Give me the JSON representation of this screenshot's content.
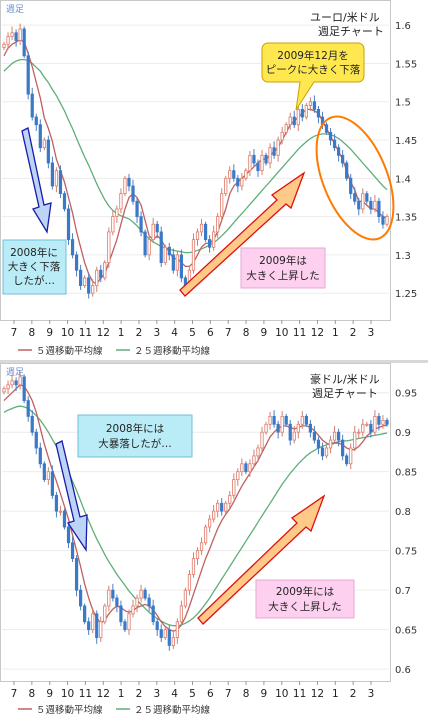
{
  "chart_data": [
    {
      "type": "candlestick",
      "corner_label": "週足",
      "title_lines": [
        "ユーロ/米ドル",
        "週足チャート"
      ],
      "y_ticks": [
        "1.6",
        "1.55",
        "1.5",
        "1.45",
        "1.4",
        "1.35",
        "1.3",
        "1.25"
      ],
      "ylim": [
        1.215,
        1.625
      ],
      "x_ticks": [
        "7",
        "8",
        "9",
        "10",
        "11",
        "12",
        "1",
        "2",
        "3",
        "4",
        "5",
        "6",
        "7",
        "8",
        "9",
        "10",
        "11",
        "12",
        "1",
        "2",
        "3"
      ],
      "legend": [
        {
          "label": "５週移動平均線",
          "color": "#c06060"
        },
        {
          "label": "２５週移動平均線",
          "color": "#5fae7a"
        }
      ],
      "closes": [
        1.575,
        1.585,
        1.59,
        1.58,
        1.595,
        1.56,
        1.51,
        1.48,
        1.47,
        1.44,
        1.45,
        1.42,
        1.39,
        1.41,
        1.38,
        1.36,
        1.32,
        1.3,
        1.28,
        1.26,
        1.27,
        1.25,
        1.26,
        1.28,
        1.27,
        1.29,
        1.33,
        1.35,
        1.36,
        1.38,
        1.4,
        1.39,
        1.37,
        1.35,
        1.33,
        1.3,
        1.32,
        1.34,
        1.33,
        1.29,
        1.31,
        1.3,
        1.28,
        1.3,
        1.27,
        1.26,
        1.28,
        1.32,
        1.33,
        1.34,
        1.32,
        1.31,
        1.33,
        1.35,
        1.38,
        1.4,
        1.41,
        1.4,
        1.39,
        1.4,
        1.41,
        1.43,
        1.42,
        1.41,
        1.43,
        1.42,
        1.44,
        1.43,
        1.45,
        1.46,
        1.47,
        1.48,
        1.47,
        1.49,
        1.48,
        1.495,
        1.5,
        1.49,
        1.48,
        1.47,
        1.46,
        1.45,
        1.44,
        1.43,
        1.42,
        1.4,
        1.38,
        1.37,
        1.36,
        1.38,
        1.37,
        1.36,
        1.37,
        1.35,
        1.34,
        1.35
      ],
      "ma5": [
        1.56,
        1.57,
        1.575,
        1.578,
        1.581,
        1.578,
        1.563,
        1.546,
        1.525,
        1.505,
        1.479,
        1.465,
        1.448,
        1.425,
        1.41,
        1.395,
        1.375,
        1.355,
        1.33,
        1.31,
        1.29,
        1.275,
        1.265,
        1.262,
        1.27,
        1.275,
        1.29,
        1.305,
        1.32,
        1.34,
        1.36,
        1.375,
        1.38,
        1.375,
        1.365,
        1.345,
        1.325,
        1.32,
        1.325,
        1.32,
        1.31,
        1.305,
        1.295,
        1.295,
        1.29,
        1.285,
        1.285,
        1.29,
        1.3,
        1.31,
        1.315,
        1.315,
        1.32,
        1.33,
        1.345,
        1.36,
        1.38,
        1.39,
        1.395,
        1.4,
        1.405,
        1.41,
        1.415,
        1.42,
        1.425,
        1.425,
        1.43,
        1.435,
        1.44,
        1.45,
        1.46,
        1.47,
        1.475,
        1.48,
        1.485,
        1.49,
        1.49,
        1.488,
        1.485,
        1.475,
        1.465,
        1.455,
        1.445,
        1.435,
        1.425,
        1.41,
        1.395,
        1.385,
        1.37,
        1.37,
        1.365,
        1.36,
        1.36,
        1.355,
        1.35,
        1.348
      ],
      "ma25": [
        1.54,
        1.545,
        1.55,
        1.553,
        1.555,
        1.555,
        1.554,
        1.55,
        1.545,
        1.54,
        1.532,
        1.525,
        1.516,
        1.508,
        1.498,
        1.488,
        1.476,
        1.465,
        1.452,
        1.44,
        1.428,
        1.417,
        1.405,
        1.393,
        1.382,
        1.372,
        1.364,
        1.358,
        1.354,
        1.351,
        1.349,
        1.347,
        1.343,
        1.338,
        1.332,
        1.326,
        1.321,
        1.317,
        1.314,
        1.311,
        1.309,
        1.307,
        1.306,
        1.305,
        1.304,
        1.303,
        1.303,
        1.304,
        1.306,
        1.308,
        1.31,
        1.313,
        1.316,
        1.32,
        1.325,
        1.33,
        1.336,
        1.342,
        1.348,
        1.354,
        1.36,
        1.366,
        1.372,
        1.378,
        1.384,
        1.39,
        1.396,
        1.402,
        1.408,
        1.414,
        1.42,
        1.426,
        1.432,
        1.438,
        1.443,
        1.448,
        1.452,
        1.455,
        1.457,
        1.458,
        1.458,
        1.457,
        1.455,
        1.452,
        1.448,
        1.443,
        1.438,
        1.432,
        1.426,
        1.42,
        1.414,
        1.408,
        1.402,
        1.396,
        1.39,
        1.385
      ],
      "annotations": [
        {
          "text_lines": [
            "2009年12月を",
            "ピークに大きく下落"
          ]
        },
        {
          "text_lines": [
            "2008年に",
            "大きく下落",
            "したが…"
          ]
        },
        {
          "text_lines": [
            "2009年は",
            "大きく上昇した"
          ]
        }
      ]
    },
    {
      "type": "candlestick",
      "corner_label": "週足",
      "title_lines": [
        "豪ドル/米ドル",
        "週足チャート"
      ],
      "y_ticks": [
        "0.95",
        "0.9",
        "0.85",
        "0.8",
        "0.75",
        "0.7",
        "0.65",
        "0.6"
      ],
      "ylim": [
        0.585,
        0.98
      ],
      "x_ticks": [
        "7",
        "8",
        "9",
        "10",
        "11",
        "12",
        "1",
        "2",
        "3",
        "4",
        "5",
        "6",
        "7",
        "8",
        "9",
        "10",
        "11",
        "12",
        "1",
        "2",
        "3"
      ],
      "legend": [
        {
          "label": "５週移動平均線",
          "color": "#c06060"
        },
        {
          "label": "２５週移動平均線",
          "color": "#5fae7a"
        }
      ],
      "closes": [
        0.955,
        0.96,
        0.965,
        0.96,
        0.97,
        0.94,
        0.92,
        0.9,
        0.88,
        0.86,
        0.84,
        0.85,
        0.82,
        0.8,
        0.8,
        0.78,
        0.76,
        0.74,
        0.7,
        0.68,
        0.66,
        0.65,
        0.67,
        0.64,
        0.66,
        0.68,
        0.7,
        0.69,
        0.68,
        0.66,
        0.65,
        0.67,
        0.68,
        0.69,
        0.7,
        0.69,
        0.68,
        0.66,
        0.65,
        0.64,
        0.65,
        0.63,
        0.64,
        0.66,
        0.68,
        0.7,
        0.72,
        0.74,
        0.75,
        0.76,
        0.78,
        0.79,
        0.8,
        0.81,
        0.8,
        0.81,
        0.82,
        0.84,
        0.85,
        0.86,
        0.85,
        0.86,
        0.87,
        0.88,
        0.9,
        0.91,
        0.92,
        0.91,
        0.9,
        0.92,
        0.91,
        0.89,
        0.9,
        0.91,
        0.92,
        0.91,
        0.9,
        0.89,
        0.88,
        0.87,
        0.88,
        0.89,
        0.9,
        0.89,
        0.87,
        0.86,
        0.88,
        0.9,
        0.9,
        0.91,
        0.91,
        0.9,
        0.92,
        0.91,
        0.915,
        0.91
      ],
      "ma5": [
        0.94,
        0.945,
        0.95,
        0.955,
        0.96,
        0.958,
        0.95,
        0.94,
        0.925,
        0.905,
        0.885,
        0.868,
        0.852,
        0.838,
        0.822,
        0.806,
        0.79,
        0.77,
        0.75,
        0.73,
        0.708,
        0.69,
        0.675,
        0.665,
        0.658,
        0.662,
        0.67,
        0.676,
        0.68,
        0.678,
        0.674,
        0.672,
        0.674,
        0.678,
        0.68,
        0.682,
        0.68,
        0.675,
        0.668,
        0.66,
        0.654,
        0.65,
        0.648,
        0.65,
        0.656,
        0.666,
        0.68,
        0.695,
        0.71,
        0.725,
        0.74,
        0.752,
        0.765,
        0.778,
        0.788,
        0.796,
        0.803,
        0.812,
        0.822,
        0.832,
        0.84,
        0.848,
        0.856,
        0.864,
        0.874,
        0.884,
        0.894,
        0.9,
        0.905,
        0.908,
        0.908,
        0.906,
        0.904,
        0.906,
        0.908,
        0.908,
        0.906,
        0.902,
        0.896,
        0.89,
        0.886,
        0.884,
        0.886,
        0.886,
        0.884,
        0.88,
        0.878,
        0.878,
        0.882,
        0.888,
        0.895,
        0.9,
        0.904,
        0.906,
        0.908,
        0.909
      ],
      "ma25": [
        0.925,
        0.928,
        0.93,
        0.932,
        0.933,
        0.932,
        0.93,
        0.926,
        0.921,
        0.915,
        0.908,
        0.9,
        0.891,
        0.882,
        0.872,
        0.861,
        0.85,
        0.838,
        0.826,
        0.813,
        0.8,
        0.788,
        0.776,
        0.765,
        0.755,
        0.745,
        0.736,
        0.728,
        0.72,
        0.713,
        0.706,
        0.699,
        0.693,
        0.687,
        0.682,
        0.677,
        0.672,
        0.668,
        0.664,
        0.661,
        0.658,
        0.656,
        0.655,
        0.655,
        0.656,
        0.658,
        0.661,
        0.665,
        0.67,
        0.676,
        0.683,
        0.69,
        0.698,
        0.706,
        0.714,
        0.722,
        0.73,
        0.738,
        0.746,
        0.754,
        0.762,
        0.77,
        0.778,
        0.786,
        0.794,
        0.802,
        0.81,
        0.818,
        0.826,
        0.834,
        0.841,
        0.848,
        0.854,
        0.86,
        0.865,
        0.87,
        0.874,
        0.877,
        0.88,
        0.882,
        0.884,
        0.886,
        0.887,
        0.888,
        0.889,
        0.889,
        0.89,
        0.891,
        0.892,
        0.893,
        0.894,
        0.895,
        0.896,
        0.897,
        0.898,
        0.899
      ],
      "annotations": [
        {
          "text_lines": [
            "2008年には",
            "大暴落したが…"
          ]
        },
        {
          "text_lines": [
            "2009年には",
            "大きく上昇した"
          ]
        }
      ]
    }
  ]
}
